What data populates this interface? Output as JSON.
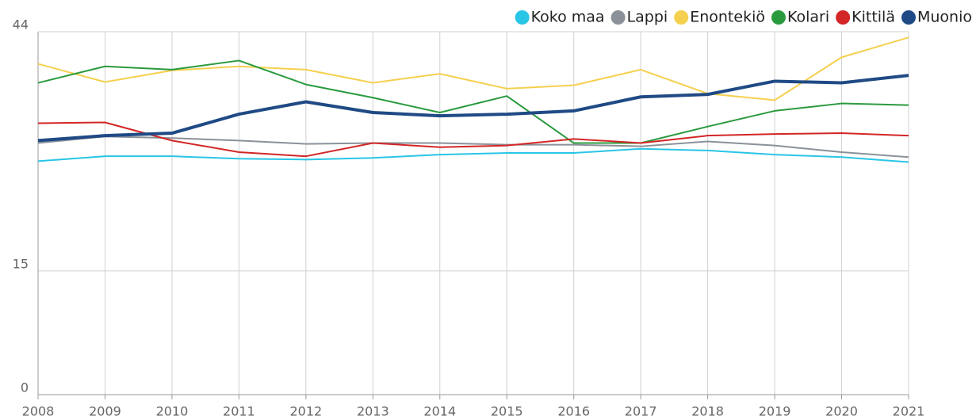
{
  "chart_data": {
    "type": "line",
    "x": [
      2008,
      2009,
      2010,
      2011,
      2012,
      2013,
      2014,
      2015,
      2016,
      2017,
      2018,
      2019,
      2020,
      2021
    ],
    "xlim": [
      2008,
      2021
    ],
    "xticks": [
      2008,
      2009,
      2010,
      2011,
      2012,
      2013,
      2014,
      2015,
      2016,
      2017,
      2018,
      2019,
      2020,
      2021
    ],
    "ylim": [
      0,
      44
    ],
    "yticks": [
      0,
      15,
      44
    ],
    "grid": true,
    "legend": "top-right",
    "series": [
      {
        "name": "Koko maa",
        "color": "#29c5e6",
        "width": 2,
        "values": [
          28.3,
          28.9,
          28.9,
          28.6,
          28.5,
          28.7,
          29.1,
          29.3,
          29.3,
          29.8,
          29.6,
          29.1,
          28.8,
          28.2
        ]
      },
      {
        "name": "Lappi",
        "color": "#8a9199",
        "width": 2,
        "values": [
          30.5,
          31.3,
          31.1,
          30.8,
          30.4,
          30.5,
          30.5,
          30.3,
          30.3,
          30.1,
          30.7,
          30.2,
          29.4,
          28.8
        ]
      },
      {
        "name": "Enontekiö",
        "color": "#f5d04f",
        "width": 2,
        "values": [
          40.1,
          37.9,
          39.3,
          39.8,
          39.4,
          37.8,
          38.9,
          37.1,
          37.5,
          39.4,
          36.5,
          35.7,
          40.9,
          43.3
        ]
      },
      {
        "name": "Kolari",
        "color": "#2a9a3e",
        "width": 2,
        "values": [
          37.8,
          39.8,
          39.4,
          40.5,
          37.6,
          36.0,
          34.2,
          36.2,
          30.5,
          30.5,
          32.5,
          34.4,
          35.3,
          35.1
        ]
      },
      {
        "name": "Kittilä",
        "color": "#d32626",
        "width": 2,
        "values": [
          32.9,
          33.0,
          30.8,
          29.4,
          28.9,
          30.5,
          30.0,
          30.2,
          31.0,
          30.5,
          31.4,
          31.6,
          31.7,
          31.4
        ]
      },
      {
        "name": "Muonio",
        "color": "#1f4a85",
        "width": 4,
        "values": [
          30.8,
          31.4,
          31.7,
          34.0,
          35.5,
          34.2,
          33.8,
          34.0,
          34.4,
          36.1,
          36.4,
          38.0,
          37.8,
          38.7
        ]
      }
    ]
  }
}
